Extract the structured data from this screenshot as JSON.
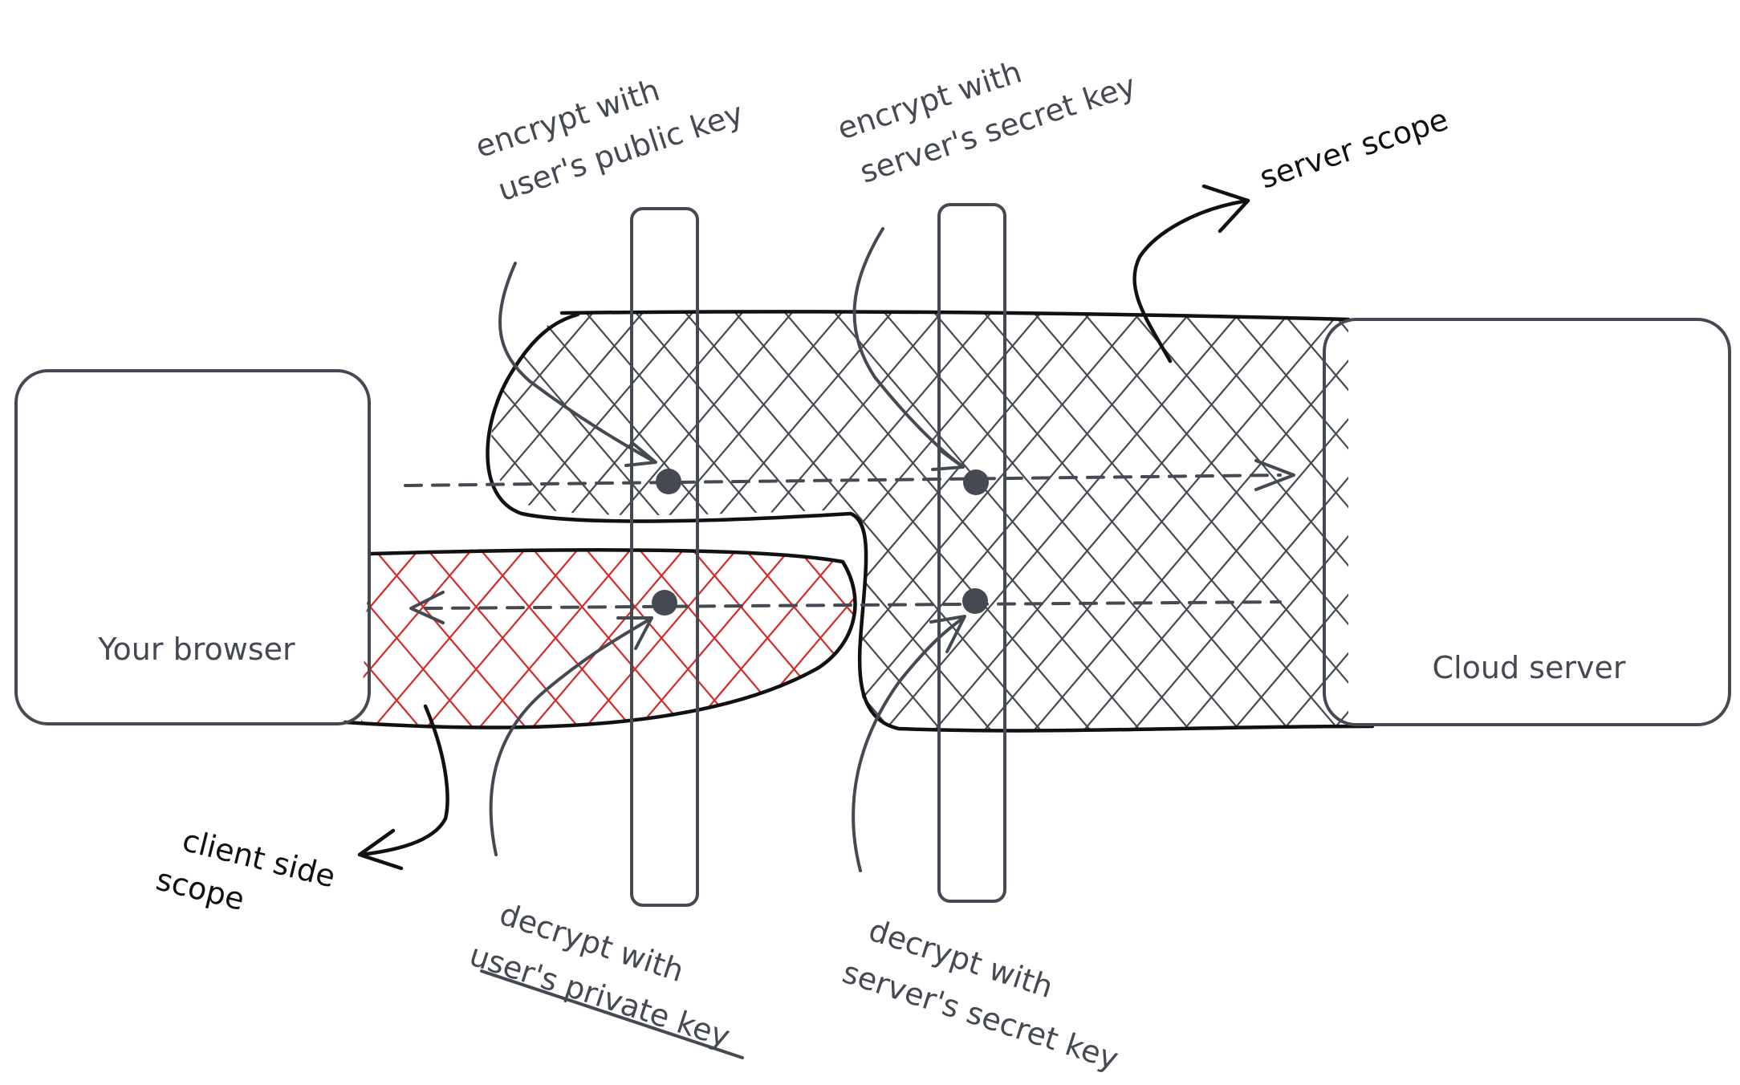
{
  "nodes": {
    "browser": {
      "label": "Your browser"
    },
    "server": {
      "label": "Cloud server"
    }
  },
  "annotations": {
    "encrypt_user": [
      "encrypt with",
      "user's public key"
    ],
    "encrypt_server": [
      "encrypt with",
      "server's secret key"
    ],
    "server_scope": "server scope",
    "client_scope": [
      "client side",
      "scope"
    ],
    "decrypt_user": [
      "decrypt with",
      "user's private key"
    ],
    "decrypt_server": [
      "decrypt with",
      "server's secret key"
    ]
  },
  "colors": {
    "ink": "#454a52",
    "scope_outline": "#111111",
    "client_hatch": "#d42a2a"
  }
}
